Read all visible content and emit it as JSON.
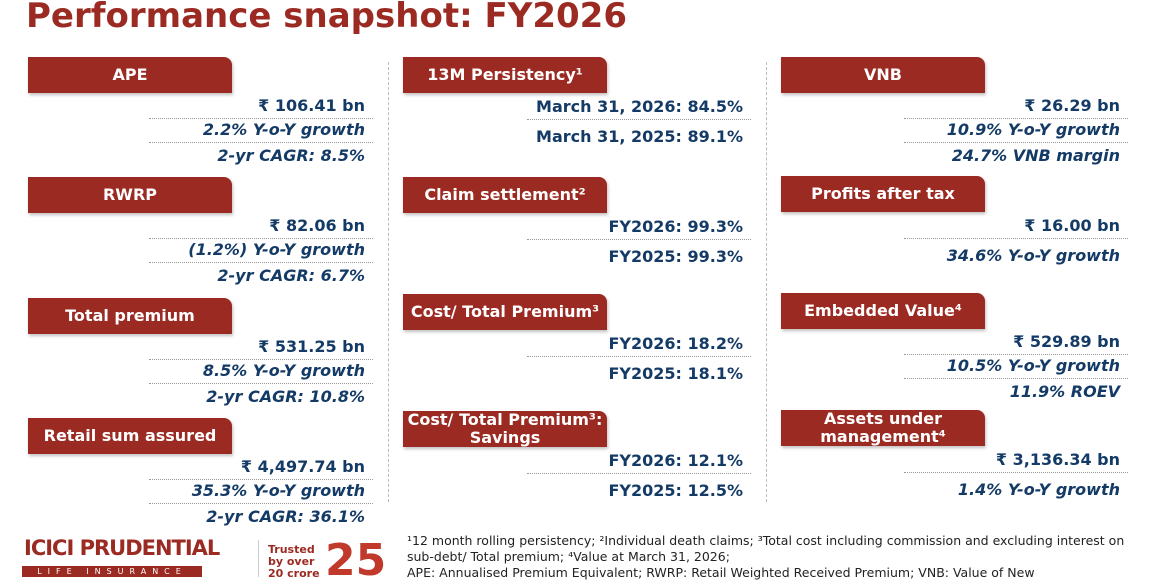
{
  "title": "Performance snapshot: FY2026",
  "columns": [
    [
      {
        "label": "APE",
        "lines": [
          "₹ 106.41 bn",
          "2.2% Y-o-Y growth",
          "2-yr CAGR: 8.5%"
        ]
      },
      {
        "label": "RWRP",
        "lines": [
          "₹ 82.06 bn",
          "(1.2%) Y-o-Y growth",
          "2-yr CAGR: 6.7%"
        ]
      },
      {
        "label": "Total premium",
        "lines": [
          "₹ 531.25 bn",
          "8.5% Y-o-Y growth",
          "2-yr CAGR: 10.8%"
        ]
      },
      {
        "label": "Retail sum assured",
        "lines": [
          "₹ 4,497.74 bn",
          "35.3% Y-o-Y growth",
          "2-yr CAGR: 36.1%"
        ]
      }
    ],
    [
      {
        "label": "13M Persistency¹",
        "lines": [
          "March 31, 2026: 84.5%",
          "March 31, 2025: 89.1%"
        ]
      },
      {
        "label": "Claim settlement²",
        "lines": [
          "FY2026: 99.3%",
          "FY2025: 99.3%"
        ]
      },
      {
        "label": "Cost/ Total Premium³",
        "lines": [
          "FY2026: 18.2%",
          "FY2025: 18.1%"
        ]
      },
      {
        "label": "Cost/ Total Premium³: Savings",
        "lines": [
          "FY2026: 12.1%",
          "FY2025: 12.5%"
        ]
      }
    ],
    [
      {
        "label": "VNB",
        "lines": [
          "₹ 26.29 bn",
          "10.9% Y-o-Y growth",
          "24.7% VNB margin"
        ]
      },
      {
        "label": "Profits after tax",
        "lines": [
          "₹ 16.00 bn",
          "34.6% Y-o-Y growth"
        ]
      },
      {
        "label": "Embedded Value⁴",
        "lines": [
          "₹ 529.89 bn",
          "10.5% Y-o-Y growth",
          "11.9% ROEV"
        ]
      },
      {
        "label": "Assets under management⁴",
        "lines": [
          "₹ 3,136.34 bn",
          "1.4% Y-o-Y growth"
        ]
      }
    ]
  ],
  "footnotes": [
    "¹12 month rolling persistency; ²Individual death claims; ³Total cost including commission and excluding interest on sub-debt/ Total premium; ⁴Value at March 31, 2026;",
    "APE: Annualised Premium Equivalent; RWRP: Retail Weighted Received Premium; VNB: Value of New"
  ],
  "logo": {
    "name": "ICICI PRUDENTIAL",
    "sub": "LIFE INSURANCE",
    "tagline": "Trusted by over 20 crore",
    "number": "25"
  }
}
